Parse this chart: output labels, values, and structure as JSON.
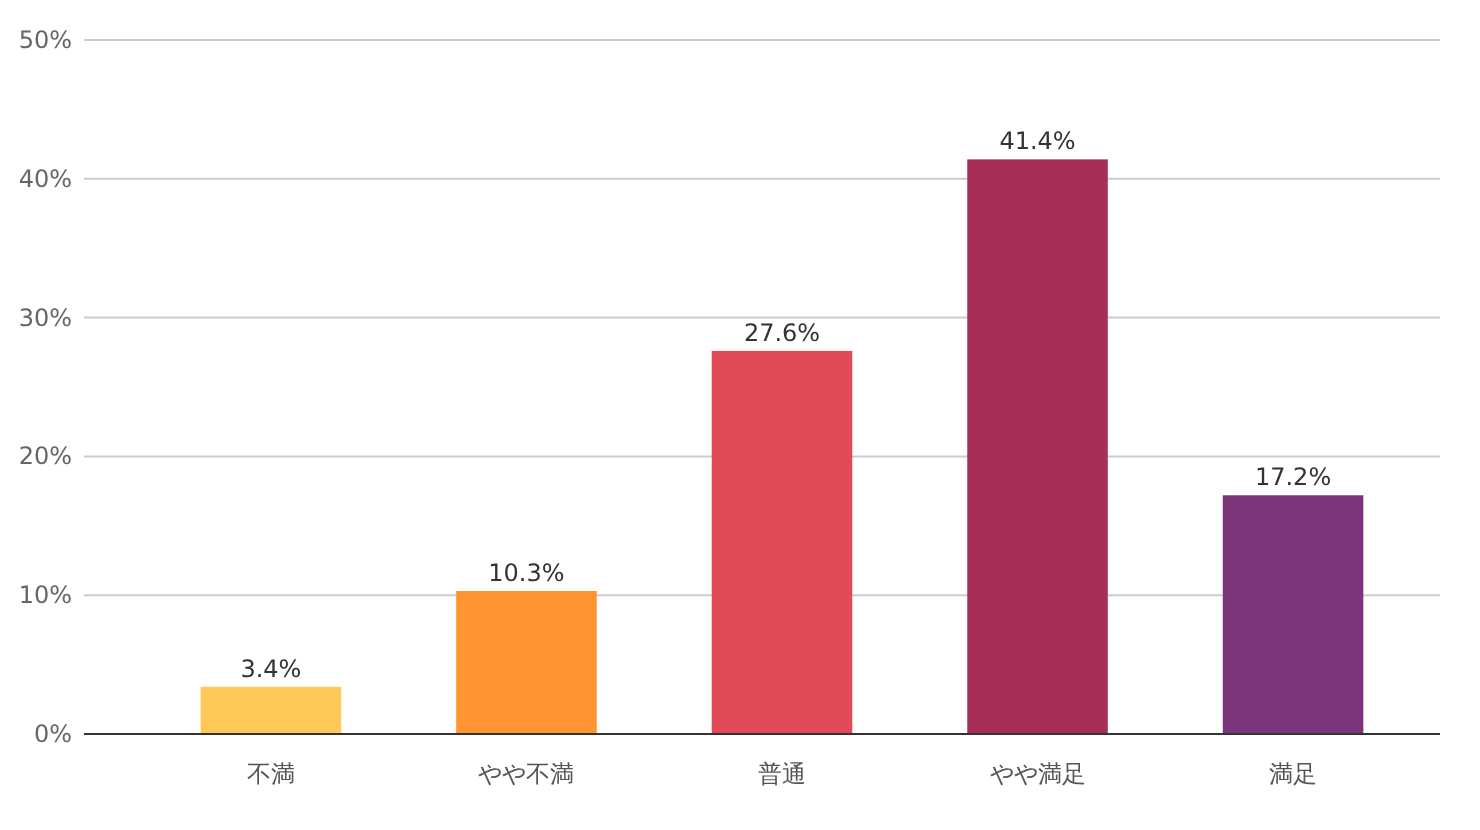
{
  "chart_data": {
    "type": "bar",
    "categories": [
      "不満",
      "やや不満",
      "普通",
      "やや満足",
      "満足"
    ],
    "values": [
      3.4,
      10.3,
      27.6,
      41.4,
      17.2
    ],
    "colors": [
      "#ffc857",
      "#ff9430",
      "#e34a58",
      "#a82e58",
      "#7b357a"
    ],
    "ylim": [
      0,
      50
    ],
    "yticks": [
      {
        "value": 0,
        "label": "0%"
      },
      {
        "value": 10,
        "label": "10%"
      },
      {
        "value": 20,
        "label": "20%"
      },
      {
        "value": 30,
        "label": "30%"
      },
      {
        "value": 40,
        "label": "40%"
      },
      {
        "value": 50,
        "label": "50%"
      }
    ],
    "grid": "y",
    "value_labels": [
      "3.4%",
      "10.3%",
      "27.6%",
      "41.4%",
      "17.2%"
    ]
  }
}
